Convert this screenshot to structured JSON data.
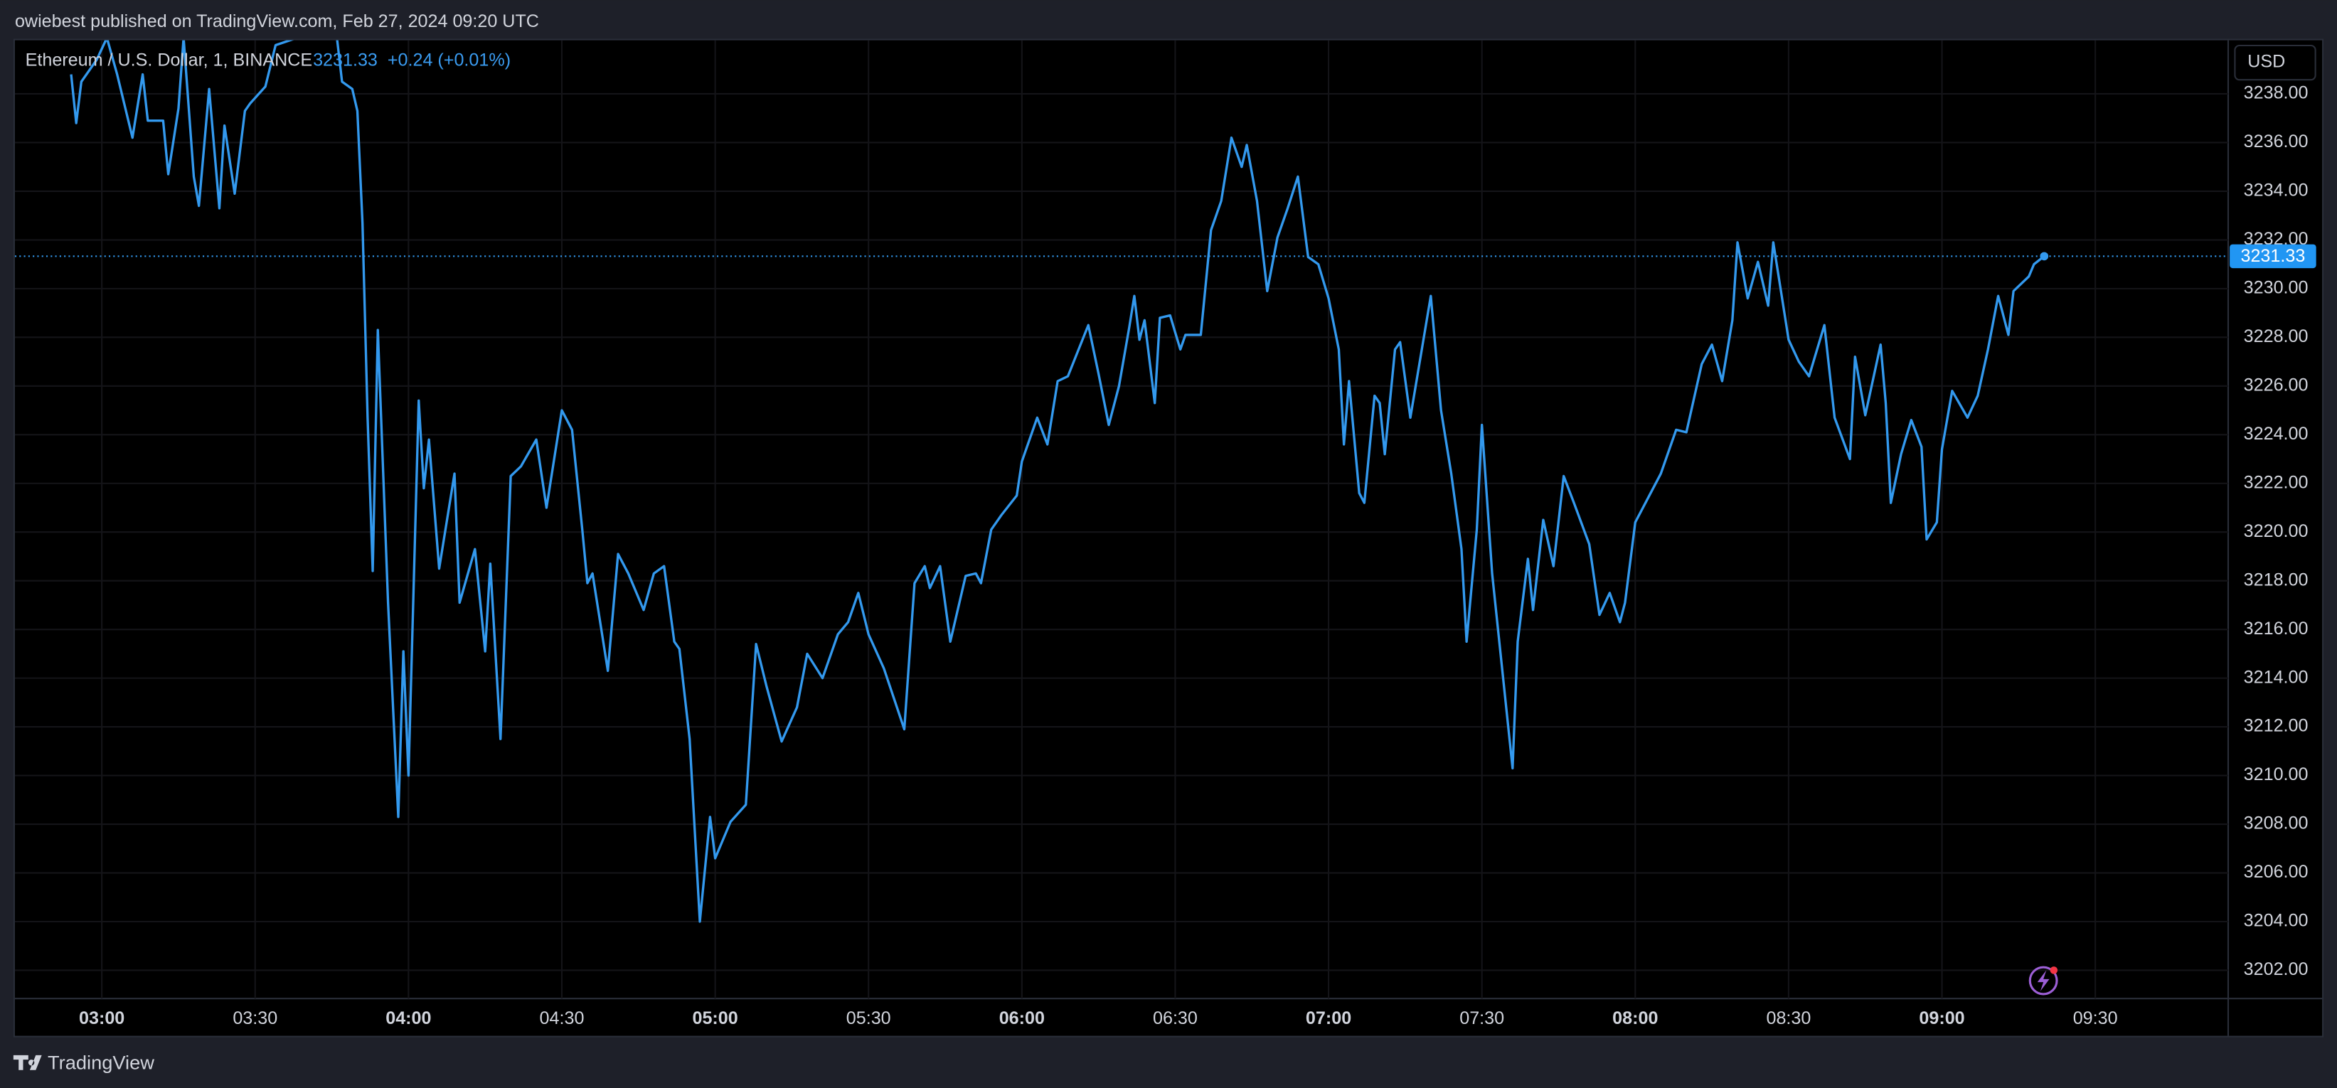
{
  "publisher_line": "owiebest published on TradingView.com, Feb 27, 2024 09:20 UTC",
  "brand": "TradingView",
  "chart_data": {
    "type": "line",
    "title": "Ethereum / U.S. Dollar, 1, BINANCE",
    "last_value": 3231.33,
    "change_label": "+0.24 (+0.01%)",
    "currency": "USD",
    "grid": true,
    "x": [
      "02:54",
      "02:55",
      "02:56",
      "02:59",
      "03:01",
      "03:03",
      "03:06",
      "03:08",
      "03:09",
      "03:12",
      "03:13",
      "03:15",
      "03:16",
      "03:18",
      "03:19",
      "03:21",
      "03:23",
      "03:24",
      "03:26",
      "03:28",
      "03:29",
      "03:32",
      "03:34",
      "03:41",
      "03:46",
      "03:47",
      "03:49",
      "03:50",
      "03:51",
      "03:52",
      "03:53",
      "03:54",
      "03:56",
      "03:58",
      "03:59",
      "04:00",
      "04:02",
      "04:03",
      "04:04",
      "04:06",
      "04:09",
      "04:10",
      "04:13",
      "04:15",
      "04:16",
      "04:18",
      "04:20",
      "04:22",
      "04:25",
      "04:27",
      "04:30",
      "04:32",
      "04:34",
      "04:35",
      "04:36",
      "04:39",
      "04:41",
      "04:43",
      "04:46",
      "04:48",
      "04:50",
      "04:52",
      "04:53",
      "04:55",
      "04:57",
      "04:59",
      "05:00",
      "05:03",
      "05:06",
      "05:08",
      "05:10",
      "05:13",
      "05:16",
      "05:18",
      "05:21",
      "05:24",
      "05:26",
      "05:28",
      "05:30",
      "05:33",
      "05:37",
      "05:39",
      "05:41",
      "05:42",
      "05:44",
      "05:46",
      "05:49",
      "05:51",
      "05:52",
      "05:54",
      "05:56",
      "05:59",
      "06:00",
      "06:03",
      "06:05",
      "06:07",
      "06:09",
      "06:13",
      "06:15",
      "06:17",
      "06:19",
      "06:21",
      "06:22",
      "06:23",
      "06:24",
      "06:26",
      "06:27",
      "06:29",
      "06:31",
      "06:32",
      "06:35",
      "06:37",
      "06:39",
      "06:41",
      "06:43",
      "06:44",
      "06:46",
      "06:48",
      "06:50",
      "06:52",
      "06:54",
      "06:56",
      "06:58",
      "07:00",
      "07:02",
      "07:03",
      "07:04",
      "07:06",
      "07:07",
      "07:09",
      "07:10",
      "07:11",
      "07:13",
      "07:14",
      "07:16",
      "07:18",
      "07:20",
      "07:22",
      "07:24",
      "07:26",
      "07:27",
      "07:29",
      "07:30",
      "07:32",
      "07:34",
      "07:36",
      "07:37",
      "07:39",
      "07:40",
      "07:42",
      "07:44",
      "07:46",
      "07:48",
      "07:51",
      "07:53",
      "07:55",
      "07:57",
      "07:58",
      "08:00",
      "08:03",
      "08:05",
      "08:08",
      "08:10",
      "08:13",
      "08:15",
      "08:17",
      "08:19",
      "08:20",
      "08:22",
      "08:24",
      "08:26",
      "08:27",
      "08:30",
      "08:32",
      "08:34",
      "08:35",
      "08:37",
      "08:39",
      "08:42",
      "08:43",
      "08:45",
      "08:48",
      "08:49",
      "08:50",
      "08:52",
      "08:54",
      "08:56",
      "08:57",
      "08:59",
      "09:00",
      "09:02",
      "09:05",
      "09:07",
      "09:09",
      "09:11",
      "09:13",
      "09:14",
      "09:17",
      "09:18",
      "09:20"
    ],
    "series": [
      {
        "name": "Ethereum / U.S. Dollar",
        "color": "#3399ee",
        "values": [
          3238.8,
          3236.8,
          3238.5,
          3239.4,
          3240.3,
          3238.8,
          3236.2,
          3238.8,
          3236.9,
          3236.9,
          3234.7,
          3237.4,
          3240.3,
          3234.6,
          3233.4,
          3238.2,
          3233.3,
          3236.7,
          3233.9,
          3237.3,
          3237.6,
          3238.3,
          3240.0,
          3240.5,
          3240.3,
          3238.5,
          3238.2,
          3237.3,
          3232.7,
          3224.7,
          3218.4,
          3228.3,
          3217.1,
          3208.3,
          3215.1,
          3210.0,
          3225.4,
          3221.8,
          3223.8,
          3218.5,
          3222.4,
          3217.1,
          3219.3,
          3215.1,
          3218.7,
          3211.5,
          3222.3,
          3222.7,
          3223.8,
          3221.0,
          3225.0,
          3224.2,
          3220.1,
          3217.9,
          3218.3,
          3214.3,
          3219.1,
          3218.3,
          3216.8,
          3218.3,
          3218.6,
          3215.5,
          3215.2,
          3211.5,
          3204.0,
          3208.3,
          3206.6,
          3208.1,
          3208.8,
          3215.4,
          3213.7,
          3211.4,
          3212.8,
          3215.0,
          3214.0,
          3215.8,
          3216.3,
          3217.5,
          3215.8,
          3214.4,
          3211.9,
          3217.9,
          3218.6,
          3217.7,
          3218.6,
          3215.5,
          3218.2,
          3218.3,
          3217.9,
          3220.1,
          3220.7,
          3221.5,
          3222.9,
          3224.7,
          3223.6,
          3226.2,
          3226.4,
          3228.5,
          3226.5,
          3224.4,
          3226.0,
          3228.4,
          3229.7,
          3227.9,
          3228.7,
          3225.3,
          3228.8,
          3228.9,
          3227.5,
          3228.1,
          3228.1,
          3232.4,
          3233.6,
          3236.2,
          3235.0,
          3235.9,
          3233.6,
          3229.9,
          3232.1,
          3233.3,
          3234.6,
          3231.3,
          3231.0,
          3229.6,
          3227.5,
          3223.6,
          3226.2,
          3221.6,
          3221.2,
          3225.6,
          3225.3,
          3223.2,
          3227.5,
          3227.8,
          3224.7,
          3227.2,
          3229.7,
          3225.0,
          3222.4,
          3219.3,
          3215.5,
          3220.1,
          3224.4,
          3218.3,
          3214.3,
          3210.3,
          3215.5,
          3218.9,
          3216.8,
          3220.5,
          3218.6,
          3222.3,
          3221.2,
          3219.5,
          3216.6,
          3217.5,
          3216.3,
          3217.1,
          3220.4,
          3221.6,
          3222.4,
          3224.2,
          3224.1,
          3226.9,
          3227.7,
          3226.2,
          3228.7,
          3231.9,
          3229.6,
          3231.1,
          3229.3,
          3231.9,
          3227.9,
          3227.0,
          3226.4,
          3227.1,
          3228.5,
          3224.7,
          3223.0,
          3227.2,
          3224.8,
          3227.7,
          3225.3,
          3221.2,
          3223.2,
          3224.6,
          3223.5,
          3219.7,
          3220.4,
          3223.4,
          3225.8,
          3224.7,
          3225.6,
          3227.5,
          3229.7,
          3228.1,
          3229.9,
          3230.5,
          3231.0,
          3231.33
        ]
      }
    ],
    "xlim": [
      "02:43",
      "09:56"
    ],
    "xticks": [
      "03:00",
      "03:30",
      "04:00",
      "04:30",
      "05:00",
      "05:30",
      "06:00",
      "06:30",
      "07:00",
      "07:30",
      "08:00",
      "08:30",
      "09:00",
      "09:30"
    ],
    "ylim": [
      3200.84,
      3240.2
    ],
    "yticks": [
      {
        "value": 3202,
        "label": "3202.00"
      },
      {
        "value": 3204,
        "label": "3204.00"
      },
      {
        "value": 3206,
        "label": "3206.00"
      },
      {
        "value": 3208,
        "label": "3208.00"
      },
      {
        "value": 3210,
        "label": "3210.00"
      },
      {
        "value": 3212,
        "label": "3212.00"
      },
      {
        "value": 3214,
        "label": "3214.00"
      },
      {
        "value": 3216,
        "label": "3216.00"
      },
      {
        "value": 3218,
        "label": "3218.00"
      },
      {
        "value": 3220,
        "label": "3220.00"
      },
      {
        "value": 3222,
        "label": "3222.00"
      },
      {
        "value": 3224,
        "label": "3224.00"
      },
      {
        "value": 3226,
        "label": "3226.00"
      },
      {
        "value": 3228,
        "label": "3228.00"
      },
      {
        "value": 3230,
        "label": "3230.00"
      },
      {
        "value": 3232,
        "label": "3232.00"
      },
      {
        "value": 3234,
        "label": "3234.00"
      },
      {
        "value": 3236,
        "label": "3236.00"
      },
      {
        "value": 3238,
        "label": "3238.00"
      }
    ]
  }
}
